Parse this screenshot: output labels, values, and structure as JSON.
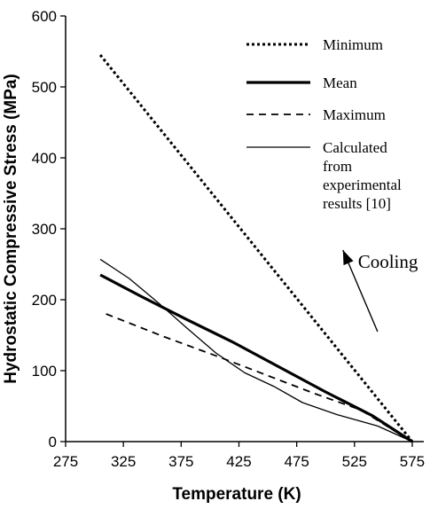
{
  "chart_data": {
    "type": "line",
    "xlabel": "Temperature (K)",
    "ylabel": "Hydrostatic Compressive Stress (MPa)",
    "xlim": [
      275,
      585
    ],
    "ylim": [
      0,
      600
    ],
    "x_ticks": [
      275,
      325,
      375,
      425,
      475,
      525,
      575
    ],
    "y_ticks": [
      0,
      100,
      200,
      300,
      400,
      500,
      600
    ],
    "grid": false,
    "legend_position": "top-right",
    "series": [
      {
        "name": "Minimum",
        "style": "dotted",
        "color": "#000000",
        "x": [
          305,
          575
        ],
        "y": [
          545,
          0
        ]
      },
      {
        "name": "Mean",
        "style": "thick",
        "color": "#000000",
        "x": [
          305,
          340,
          380,
          420,
          460,
          500,
          540,
          575
        ],
        "y": [
          235,
          205,
          172,
          140,
          105,
          70,
          37,
          0
        ]
      },
      {
        "name": "Maximum",
        "style": "dashed",
        "color": "#000000",
        "x": [
          310,
          360,
          410,
          450,
          490,
          530,
          575
        ],
        "y": [
          180,
          148,
          118,
          93,
          68,
          45,
          0
        ]
      },
      {
        "name": "Calculated from experimental results [10]",
        "style": "thin",
        "color": "#000000",
        "x": [
          305,
          330,
          355,
          380,
          405,
          430,
          455,
          480,
          510,
          545,
          575
        ],
        "y": [
          257,
          230,
          196,
          160,
          125,
          97,
          78,
          55,
          38,
          22,
          0
        ]
      }
    ],
    "legend": [
      {
        "label_lines": [
          "Minimum"
        ]
      },
      {
        "label_lines": [
          "Mean"
        ]
      },
      {
        "label_lines": [
          "Maximum"
        ]
      },
      {
        "label_lines": [
          "Calculated",
          "from",
          "experimental",
          "results [10]"
        ]
      }
    ],
    "annotation": {
      "text": "Cooling",
      "arrow_from": [
        545,
        155
      ],
      "arrow_to": [
        515,
        270
      ]
    }
  }
}
